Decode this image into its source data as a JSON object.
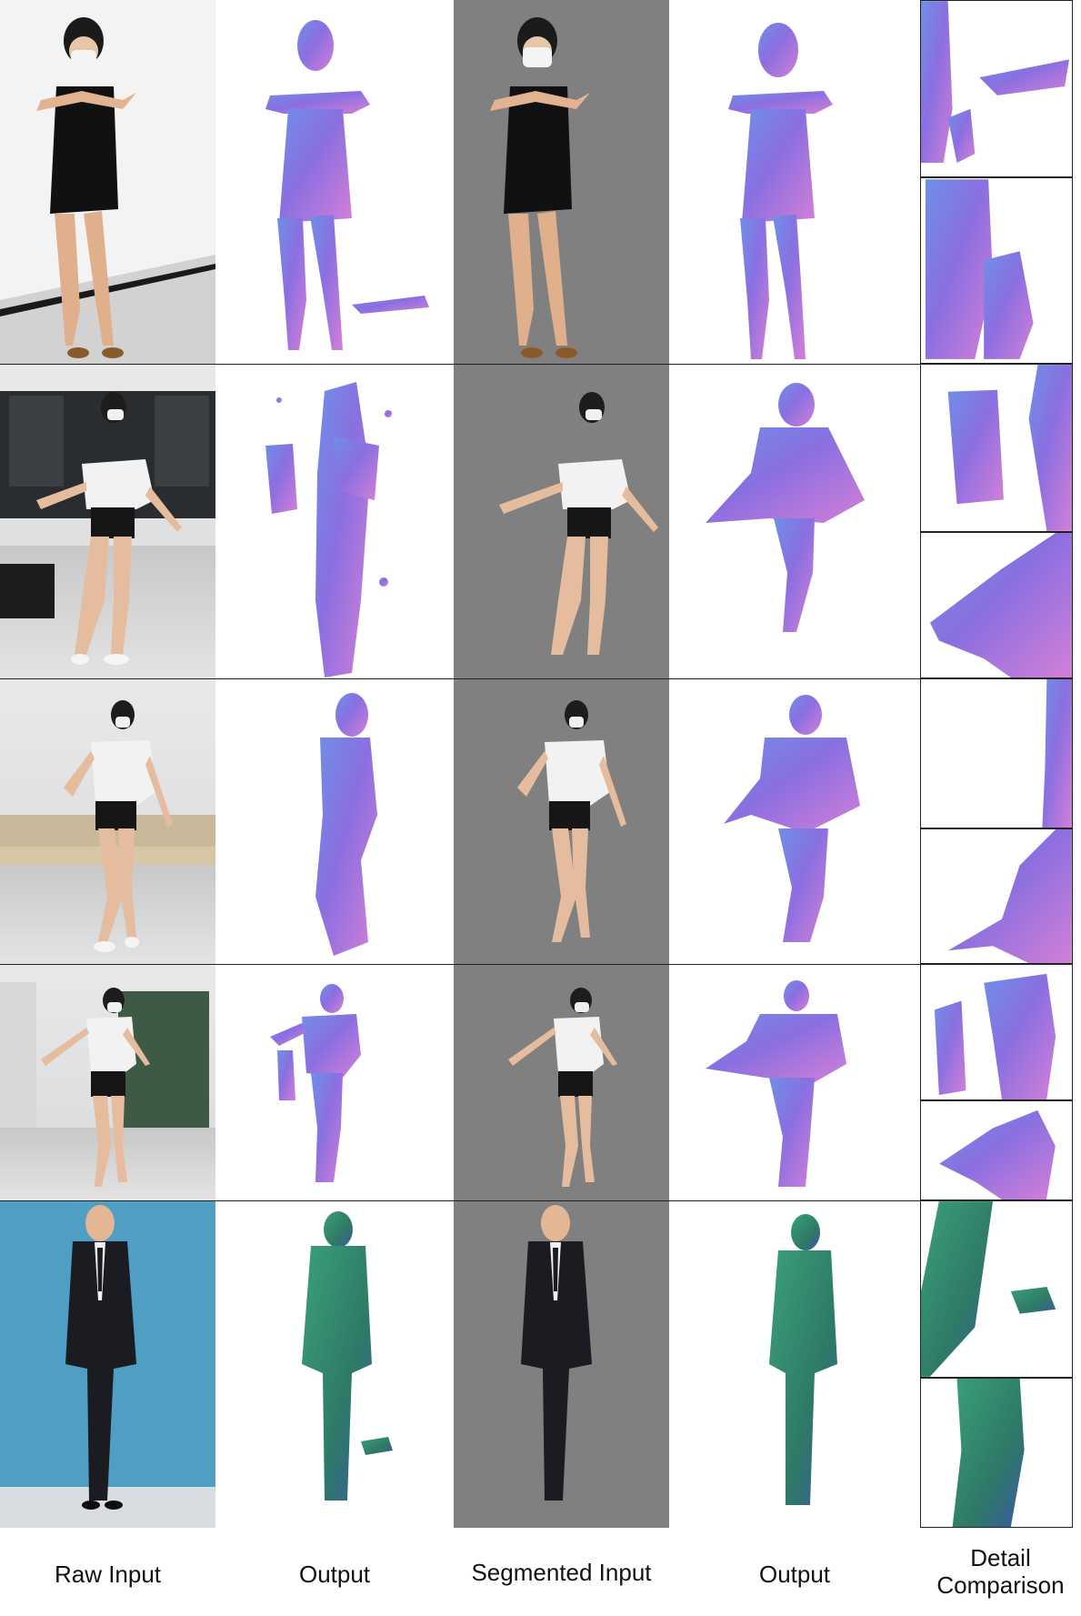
{
  "columns": [
    {
      "label": "Raw Input"
    },
    {
      "label": "Output"
    },
    {
      "label": "Segmented Input"
    },
    {
      "label": "Output"
    },
    {
      "label_line1": "Detail",
      "label_line2": "Comparison"
    }
  ],
  "rows": [
    {
      "subject": "woman-black-dress"
    },
    {
      "subject": "woman-white-shirt-classroom"
    },
    {
      "subject": "woman-white-shirt-studio"
    },
    {
      "subject": "woman-white-shirt-hallway"
    },
    {
      "subject": "man-black-suit"
    }
  ],
  "colors": {
    "segmented_background": "#808080",
    "normal_map_purple": "#8a6fe0",
    "normal_map_pink": "#d37fd8",
    "normal_map_blue": "#6f8fe8",
    "normal_map_green": "#2e8a66",
    "photo_wall_blue": "#4f9ec4"
  }
}
